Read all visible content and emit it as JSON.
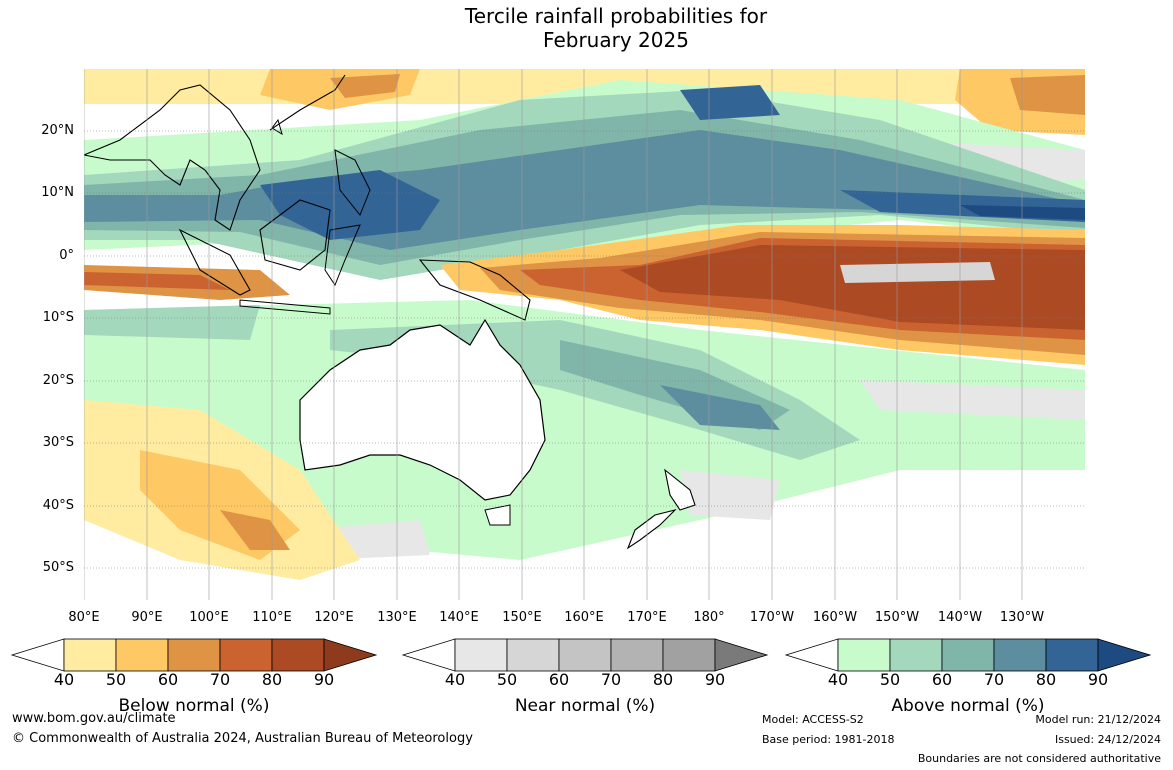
{
  "title_line1": "Tercile rainfall probabilities for",
  "title_line2": "February 2025",
  "latitude_labels": [
    "20°N",
    "10°N",
    "0°",
    "10°S",
    "20°S",
    "30°S",
    "40°S",
    "50°S"
  ],
  "longitude_labels": [
    "80°E",
    "90°E",
    "100°E",
    "110°E",
    "120°E",
    "130°E",
    "140°E",
    "150°E",
    "160°E",
    "170°E",
    "180°",
    "170°W",
    "160°W",
    "150°W",
    "140°W",
    "130°W"
  ],
  "legend": {
    "ticks": [
      "40",
      "50",
      "60",
      "70",
      "80",
      "90"
    ],
    "below": {
      "label": "Below normal (%)",
      "colors": [
        "#ffeca0",
        "#fec964",
        "#df9345",
        "#cb6330",
        "#ac4a24",
        "#8e3a1c"
      ]
    },
    "near": {
      "label": "Near normal (%)",
      "colors": [
        "#e7e7e7",
        "#d6d6d6",
        "#c4c4c4",
        "#b3b3b3",
        "#a1a1a1",
        "#7a7a7a"
      ]
    },
    "above": {
      "label": "Above normal (%)",
      "colors": [
        "#c8fbcc",
        "#a3d8bd",
        "#80b5aa",
        "#5d8ea0",
        "#336496",
        "#1d4a80"
      ]
    }
  },
  "footer": {
    "website": "www.bom.gov.au/climate",
    "copyright": "© Commonwealth of Australia 2024, Australian Bureau of Meteorology",
    "model": "Model: ACCESS-S2",
    "base_period": "Base period: 1981-2018",
    "model_run": "Model run: 21/12/2024",
    "issued": "Issued: 24/12/2024",
    "disclaimer": "Boundaries are not considered authoritative"
  }
}
